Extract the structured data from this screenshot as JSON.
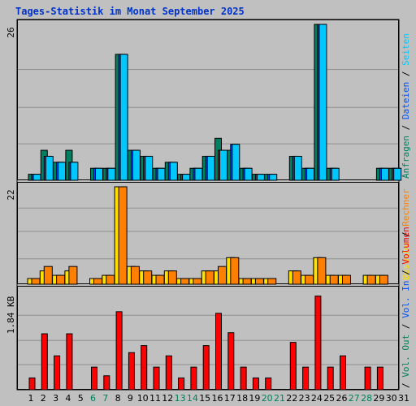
{
  "title": "Tages-Statistik im Monat September 2025",
  "colors": {
    "background": "#c0c0c0",
    "plot_border": "#808080",
    "grid": "#909090",
    "title": "#0033cc",
    "weekday_label": "#000000",
    "weekend_label": "#00805a",
    "hits": "#008060",
    "files": "#0050ff",
    "pages": "#00c8ff",
    "visits": "#ffe000",
    "sites": "#ff8000",
    "kbytes": "#ff0000"
  },
  "chart_data": [
    {
      "type": "bar",
      "panel": "top",
      "ymax_label": "26",
      "ylim": [
        0,
        26
      ],
      "categories": [
        "1",
        "2",
        "3",
        "4",
        "5",
        "6",
        "7",
        "8",
        "9",
        "10",
        "11",
        "12",
        "13",
        "14",
        "15",
        "16",
        "17",
        "18",
        "19",
        "20",
        "21",
        "22",
        "23",
        "24",
        "25",
        "26",
        "27",
        "28",
        "29",
        "30",
        "31"
      ],
      "series": [
        {
          "name": "Anfragen",
          "color": "#008060",
          "values": [
            1,
            5,
            3,
            5,
            0,
            2,
            2,
            21,
            5,
            4,
            2,
            3,
            1,
            2,
            4,
            7,
            5,
            2,
            1,
            1,
            0,
            4,
            2,
            26,
            2,
            0,
            0,
            0,
            2,
            2,
            0
          ]
        },
        {
          "name": "Dateien",
          "color": "#0050ff",
          "values": [
            1,
            4,
            3,
            3,
            0,
            2,
            2,
            21,
            5,
            4,
            2,
            3,
            1,
            2,
            4,
            5,
            6,
            2,
            1,
            1,
            0,
            4,
            2,
            26,
            2,
            0,
            0,
            0,
            2,
            2,
            0
          ]
        },
        {
          "name": "Seiten",
          "color": "#00c8ff",
          "values": [
            1,
            4,
            3,
            3,
            0,
            2,
            2,
            21,
            5,
            4,
            2,
            3,
            1,
            2,
            4,
            5,
            6,
            2,
            1,
            1,
            0,
            4,
            2,
            26,
            2,
            0,
            0,
            0,
            2,
            2,
            0
          ]
        }
      ]
    },
    {
      "type": "bar",
      "panel": "middle",
      "ymax_label": "22",
      "ylim": [
        0,
        22
      ],
      "categories": [
        "1",
        "2",
        "3",
        "4",
        "5",
        "6",
        "7",
        "8",
        "9",
        "10",
        "11",
        "12",
        "13",
        "14",
        "15",
        "16",
        "17",
        "18",
        "19",
        "20",
        "21",
        "22",
        "23",
        "24",
        "25",
        "26",
        "27",
        "28",
        "29",
        "30",
        "31"
      ],
      "series": [
        {
          "name": "Besuche",
          "color": "#ffe000",
          "values": [
            1,
            3,
            2,
            3,
            0,
            1,
            2,
            22,
            4,
            3,
            2,
            3,
            1,
            1,
            3,
            3,
            6,
            1,
            1,
            1,
            0,
            3,
            2,
            6,
            2,
            2,
            0,
            2,
            2,
            0,
            0
          ]
        },
        {
          "name": "Rechner",
          "color": "#ff8000",
          "values": [
            1,
            4,
            2,
            4,
            0,
            1,
            2,
            22,
            4,
            3,
            2,
            3,
            1,
            1,
            3,
            4,
            6,
            1,
            1,
            1,
            0,
            3,
            2,
            6,
            2,
            2,
            0,
            2,
            2,
            0,
            0
          ]
        }
      ]
    },
    {
      "type": "bar",
      "panel": "bottom",
      "ymax_label": "1.84 KB",
      "ylim": [
        0,
        1.84
      ],
      "categories": [
        "1",
        "2",
        "3",
        "4",
        "5",
        "6",
        "7",
        "8",
        "9",
        "10",
        "11",
        "12",
        "13",
        "14",
        "15",
        "16",
        "17",
        "18",
        "19",
        "20",
        "21",
        "22",
        "23",
        "24",
        "25",
        "26",
        "27",
        "28",
        "29",
        "30",
        "31"
      ],
      "series": [
        {
          "name": "Volumen",
          "color": "#ff0000",
          "values": [
            0.22,
            1.04,
            0.63,
            1.04,
            0,
            0.42,
            0.26,
            1.45,
            0.69,
            0.82,
            0.42,
            0.63,
            0.22,
            0.42,
            0.82,
            1.42,
            1.06,
            0.42,
            0.22,
            0.22,
            0,
            0.88,
            0.42,
            1.74,
            0.42,
            0.63,
            0,
            0.42,
            0.42,
            0,
            0
          ]
        }
      ]
    }
  ],
  "x_labels": [
    {
      "text": "1",
      "weekend": false
    },
    {
      "text": "2",
      "weekend": false
    },
    {
      "text": "3",
      "weekend": false
    },
    {
      "text": "4",
      "weekend": false
    },
    {
      "text": "5",
      "weekend": false
    },
    {
      "text": "6",
      "weekend": true
    },
    {
      "text": "7",
      "weekend": true
    },
    {
      "text": "8",
      "weekend": false
    },
    {
      "text": "9",
      "weekend": false
    },
    {
      "text": "10",
      "weekend": false
    },
    {
      "text": "11",
      "weekend": false
    },
    {
      "text": "12",
      "weekend": false
    },
    {
      "text": "13",
      "weekend": true
    },
    {
      "text": "14",
      "weekend": true
    },
    {
      "text": "15",
      "weekend": false
    },
    {
      "text": "16",
      "weekend": false
    },
    {
      "text": "17",
      "weekend": false
    },
    {
      "text": "18",
      "weekend": false
    },
    {
      "text": "19",
      "weekend": false
    },
    {
      "text": "20",
      "weekend": true
    },
    {
      "text": "21",
      "weekend": true
    },
    {
      "text": "22",
      "weekend": false
    },
    {
      "text": "23",
      "weekend": false
    },
    {
      "text": "24",
      "weekend": false
    },
    {
      "text": "25",
      "weekend": false
    },
    {
      "text": "26",
      "weekend": false
    },
    {
      "text": "27",
      "weekend": true
    },
    {
      "text": "28",
      "weekend": true
    },
    {
      "text": "29",
      "weekend": false
    },
    {
      "text": "30",
      "weekend": false
    },
    {
      "text": "31",
      "weekend": false
    }
  ],
  "legend_top": [
    {
      "text": "Anfragen",
      "color": "#008060"
    },
    {
      "text": "/",
      "color": "#000000"
    },
    {
      "text": "Dateien",
      "color": "#0050ff"
    },
    {
      "text": "/",
      "color": "#000000"
    },
    {
      "text": "Seiten",
      "color": "#00c8ff"
    }
  ],
  "legend_middle": [
    {
      "text": "Besuche",
      "color": "#ffe000"
    },
    {
      "text": "/",
      "color": "#000000"
    },
    {
      "text": "Rechner",
      "color": "#ff8000"
    }
  ],
  "legend_bottom": [
    {
      "text": "/",
      "color": "#000000"
    },
    {
      "text": "Vol. Out",
      "color": "#00805a"
    },
    {
      "text": "/",
      "color": "#000000"
    },
    {
      "text": "Vol. In",
      "color": "#0050ff"
    },
    {
      "text": "/",
      "color": "#000000"
    },
    {
      "text": "Volumen",
      "color": "#ff0000"
    }
  ]
}
